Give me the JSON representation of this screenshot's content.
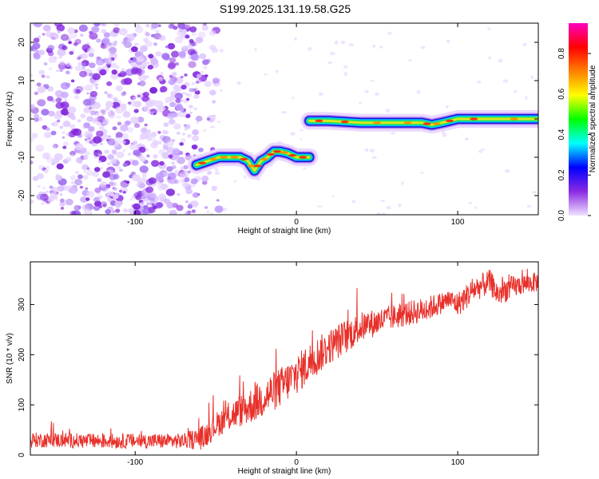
{
  "title": "S199.2025.131.19.58.G25",
  "chart_data": [
    {
      "type": "heatmap",
      "xlabel": "Height of straight line (km)",
      "ylabel": "Frequency (Hz)",
      "xlim": [
        -165,
        150
      ],
      "ylim": [
        -25,
        25
      ],
      "xticks": [
        -100,
        0,
        100
      ],
      "yticks": [
        -20,
        -10,
        0,
        10,
        20
      ],
      "colorbar": {
        "label": "Normalized spectral amplitude",
        "range": [
          0,
          0.95
        ],
        "ticks": [
          0.0,
          0.2,
          0.4,
          0.6,
          0.8
        ],
        "colormap": "rainbow",
        "stops": [
          "#f0e0ff",
          "#8a2be2",
          "#0000ff",
          "#00ffff",
          "#00ff00",
          "#ffff00",
          "#ff8000",
          "#ff0000",
          "#ff00c0"
        ]
      },
      "noise_region": {
        "x": [
          -165,
          -60
        ],
        "y": [
          -25,
          25
        ],
        "amplitude": 0.1
      },
      "ridge": [
        {
          "x": -62,
          "y": -12
        },
        {
          "x": -55,
          "y": -11
        },
        {
          "x": -48,
          "y": -10
        },
        {
          "x": -42,
          "y": -10
        },
        {
          "x": -35,
          "y": -10
        },
        {
          "x": -30,
          "y": -11
        },
        {
          "x": -26,
          "y": -13.5
        },
        {
          "x": -22,
          "y": -11
        },
        {
          "x": -18,
          "y": -10
        },
        {
          "x": -14,
          "y": -8.5
        },
        {
          "x": -10,
          "y": -8.5
        },
        {
          "x": -5,
          "y": -9
        },
        {
          "x": 0,
          "y": -10
        },
        {
          "x": 8,
          "y": -10
        },
        {
          "x": 8,
          "y": -0.5
        },
        {
          "x": 20,
          "y": -0.5
        },
        {
          "x": 40,
          "y": -1
        },
        {
          "x": 60,
          "y": -1
        },
        {
          "x": 78,
          "y": -1
        },
        {
          "x": 84,
          "y": -1.5
        },
        {
          "x": 90,
          "y": -1
        },
        {
          "x": 100,
          "y": 0
        },
        {
          "x": 120,
          "y": 0
        },
        {
          "x": 150,
          "y": 0
        }
      ]
    },
    {
      "type": "line",
      "xlabel": "Height of straight line (km)",
      "ylabel": "SNR (10 * v/v)",
      "xlim": [
        -165,
        150
      ],
      "ylim": [
        0,
        385
      ],
      "xticks": [
        -100,
        0,
        100
      ],
      "yticks": [
        0,
        100,
        200,
        300
      ],
      "color": "#e8302a",
      "series": [
        {
          "x": [
            -165,
            -150,
            -130,
            -110,
            -90,
            -70,
            -58,
            -50,
            -40,
            -30,
            -20,
            -10,
            0,
            10,
            20,
            30,
            40,
            60,
            80,
            95,
            100,
            110,
            120,
            125,
            130,
            140,
            150
          ],
          "values": [
            30,
            30,
            28,
            28,
            28,
            28,
            35,
            60,
            80,
            95,
            115,
            135,
            160,
            190,
            215,
            235,
            255,
            275,
            290,
            310,
            300,
            330,
            345,
            320,
            330,
            340,
            345
          ],
          "noise": [
            15,
            15,
            15,
            15,
            15,
            15,
            25,
            25,
            30,
            35,
            40,
            40,
            40,
            40,
            35,
            35,
            30,
            25,
            25,
            20,
            25,
            25,
            25,
            25,
            25,
            20,
            20
          ]
        }
      ]
    }
  ]
}
